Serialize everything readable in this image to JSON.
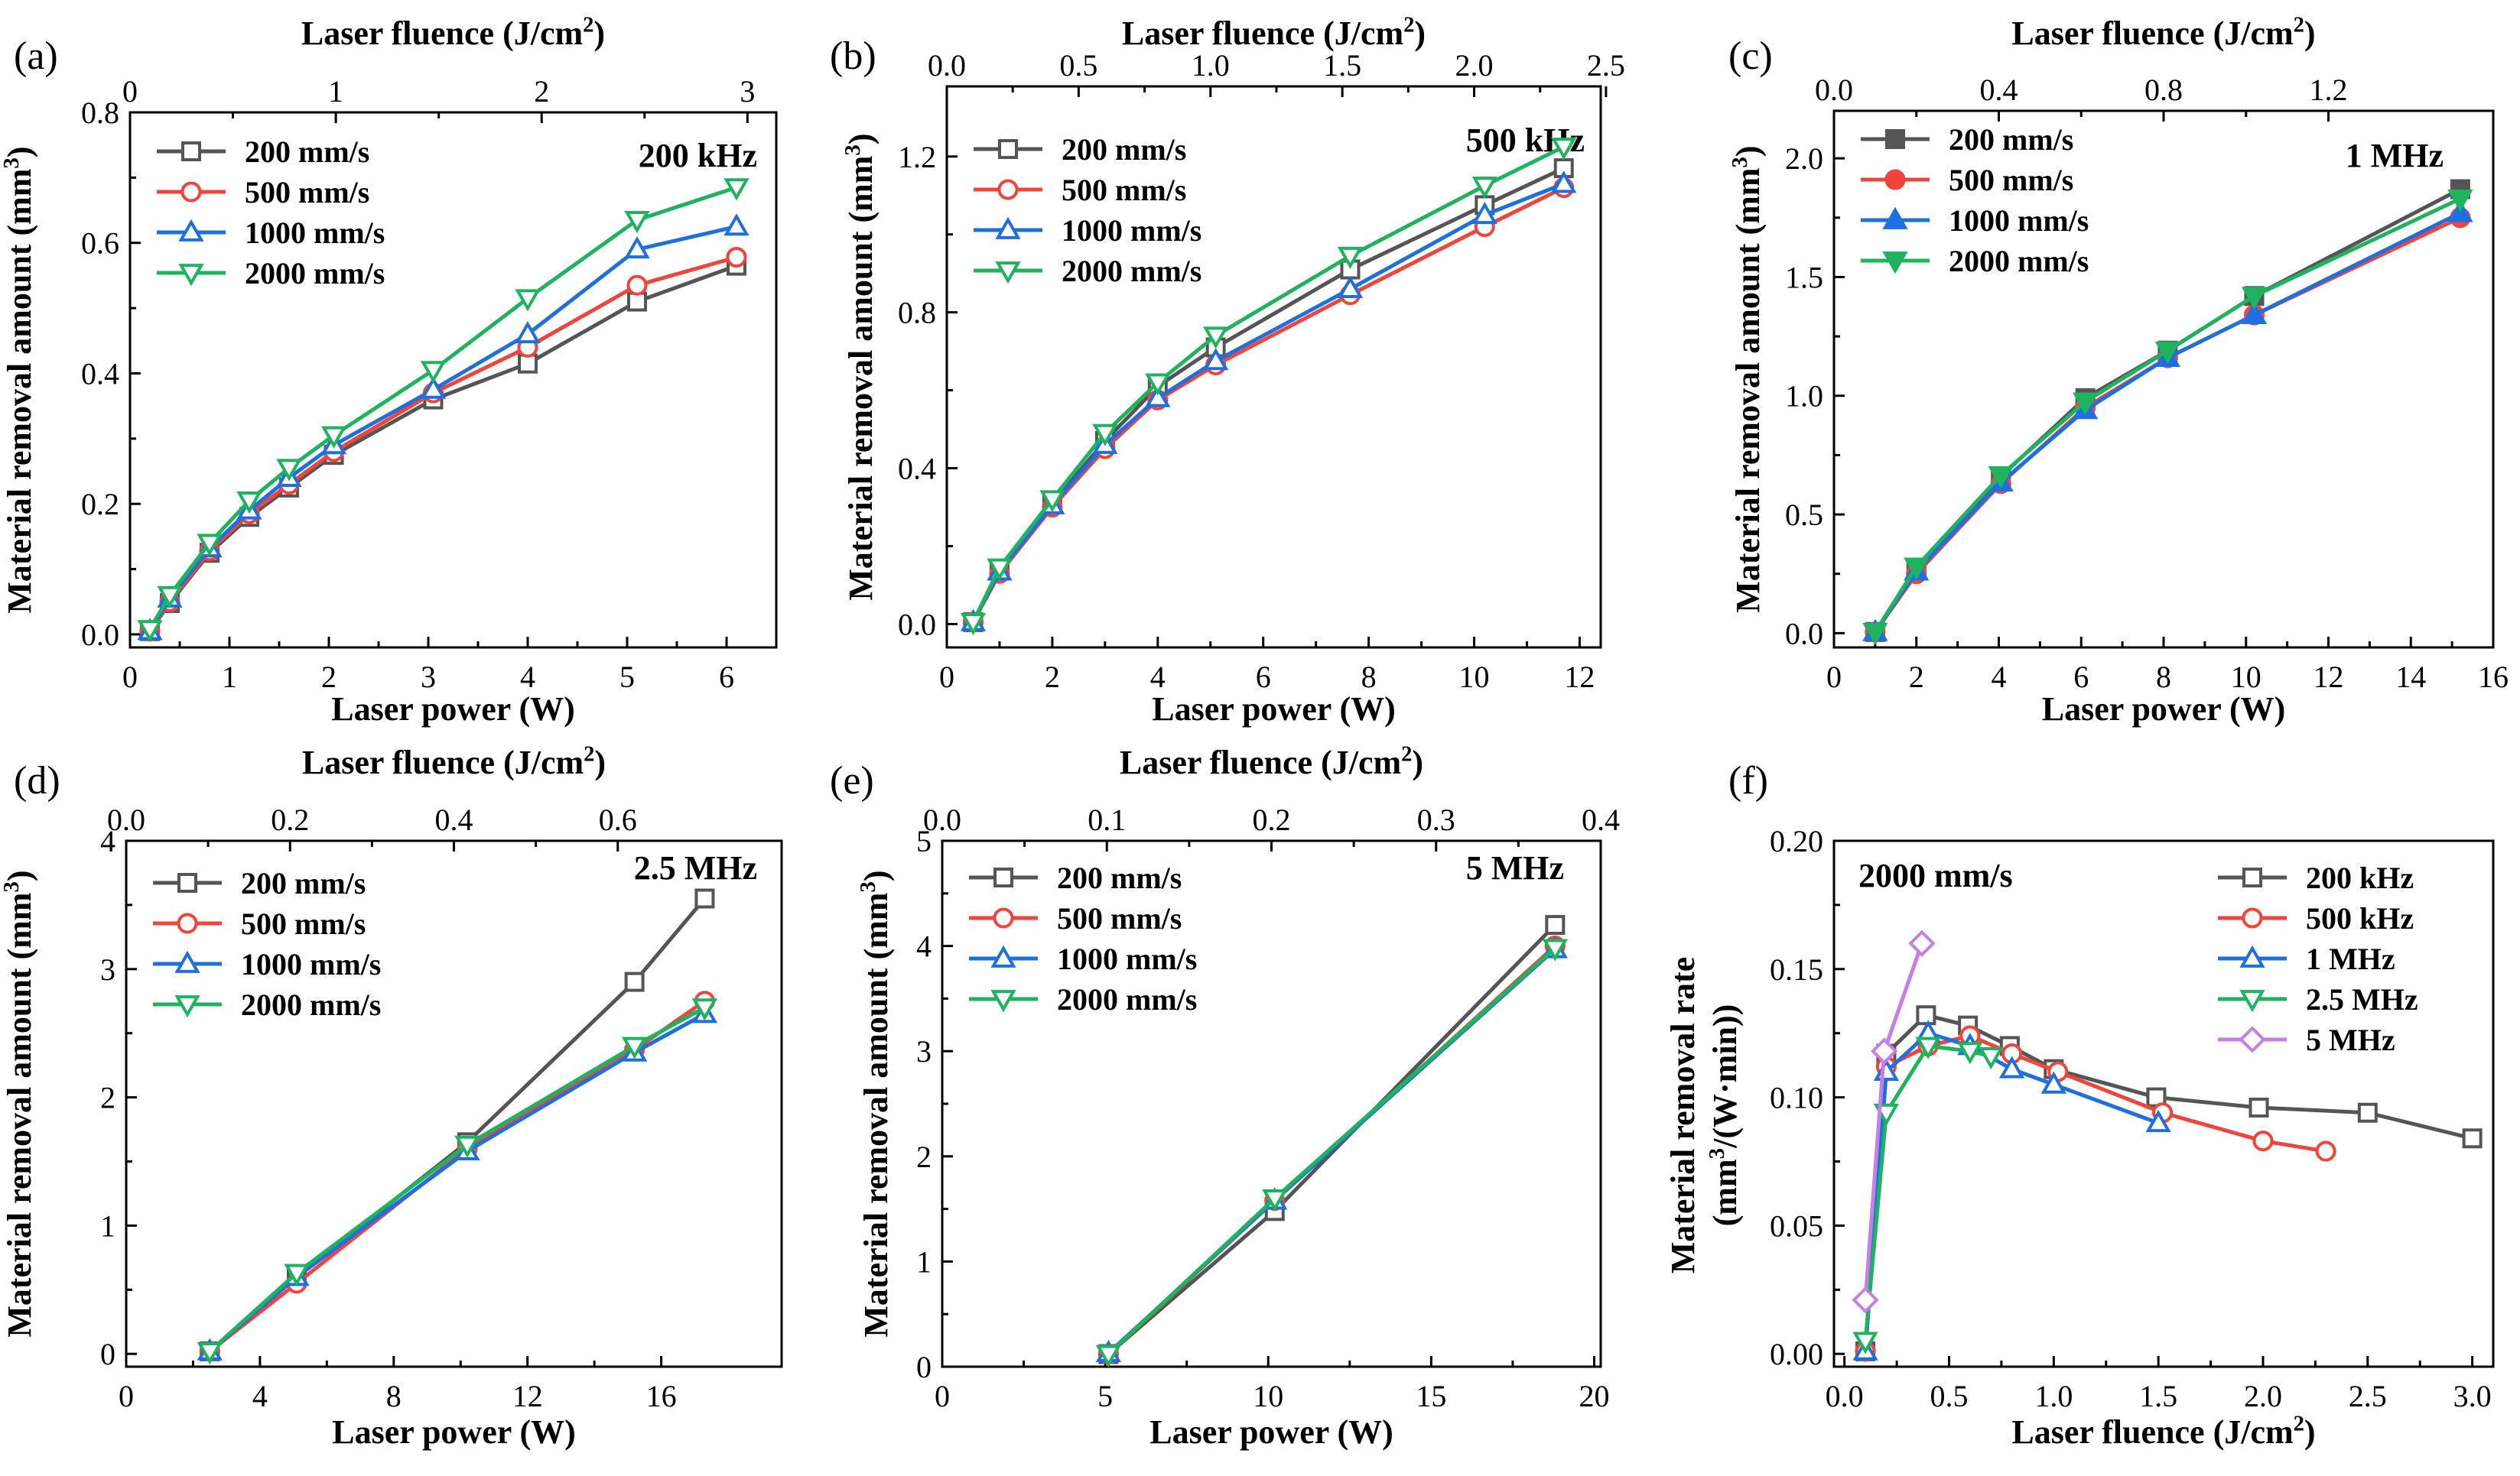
{
  "colors": {
    "200": "#555555",
    "500": "#f0443c",
    "1000": "#1e6fe0",
    "2000": "#1db35f",
    "f5MHz": "#c77ee6"
  },
  "chart_data": [
    {
      "id": "a",
      "panel_label": "(a)",
      "type": "line",
      "inset": "200 kHz",
      "xlabel": "Laser power (W)",
      "ylabel": "Material removal amount",
      "ylabel_unit": "(mm",
      "x2label": "Laser fluence (J/cm",
      "unit_exp": "2",
      "ylabel_exp": "3",
      "ylabel_close": ")",
      "xlim": [
        0,
        6.5
      ],
      "ylim": [
        -0.02,
        0.8
      ],
      "x2lim": [
        0,
        3.14
      ],
      "xticks": [
        0,
        1,
        2,
        3,
        4,
        5,
        6
      ],
      "yticks": [
        0.0,
        0.2,
        0.4,
        0.6,
        0.8
      ],
      "x2ticks": [
        0,
        1,
        2,
        3
      ],
      "xtick_labels": [
        "0",
        "1",
        "2",
        "3",
        "4",
        "5",
        "6"
      ],
      "ytick_labels": [
        "0.0",
        "0.2",
        "0.4",
        "0.6",
        "0.8"
      ],
      "x2tick_labels": [
        "0",
        "1",
        "2",
        "3"
      ],
      "ymin_ticks": true,
      "marker": "open",
      "legend_pos": "top-left",
      "series": [
        {
          "name": "200 mm/s",
          "color_key": "200",
          "shape": "square",
          "x": [
            0.2,
            0.4,
            0.8,
            1.2,
            1.6,
            2.05,
            3.05,
            4.0,
            5.1,
            6.1
          ],
          "y": [
            0.005,
            0.048,
            0.125,
            0.18,
            0.225,
            0.275,
            0.36,
            0.415,
            0.51,
            0.565
          ]
        },
        {
          "name": "500 mm/s",
          "color_key": "500",
          "shape": "circle",
          "x": [
            0.2,
            0.4,
            0.8,
            1.2,
            1.6,
            2.05,
            3.05,
            4.0,
            5.1,
            6.1
          ],
          "y": [
            0.005,
            0.05,
            0.128,
            0.185,
            0.23,
            0.28,
            0.37,
            0.44,
            0.535,
            0.578
          ]
        },
        {
          "name": "1000 mm/s",
          "color_key": "1000",
          "shape": "triangle",
          "x": [
            0.2,
            0.4,
            0.8,
            1.2,
            1.6,
            2.05,
            3.05,
            4.0,
            5.1,
            6.1
          ],
          "y": [
            0.005,
            0.055,
            0.132,
            0.19,
            0.24,
            0.29,
            0.375,
            0.46,
            0.59,
            0.625
          ]
        },
        {
          "name": "2000 mm/s",
          "color_key": "2000",
          "shape": "invtriangle",
          "x": [
            0.2,
            0.4,
            0.8,
            1.2,
            1.6,
            2.05,
            3.05,
            4.0,
            5.1,
            6.1
          ],
          "y": [
            0.008,
            0.06,
            0.14,
            0.205,
            0.255,
            0.305,
            0.405,
            0.515,
            0.635,
            0.685
          ]
        }
      ]
    },
    {
      "id": "b",
      "panel_label": "(b)",
      "type": "line",
      "inset": "500 kHz",
      "xlabel": "Laser power (W)",
      "ylabel": "Material removal amount",
      "ylabel_unit": "(mm",
      "x2label": "Laser fluence (J/cm",
      "unit_exp": "2",
      "ylabel_exp": "3",
      "ylabel_close": ")",
      "xlim": [
        0,
        12.4
      ],
      "ylim": [
        -0.06,
        1.38
      ],
      "x2lim": [
        0,
        2.48
      ],
      "xticks": [
        0,
        2,
        4,
        6,
        8,
        10,
        12
      ],
      "yticks": [
        0.0,
        0.4,
        0.8,
        1.2
      ],
      "x2ticks": [
        0.0,
        0.5,
        1.0,
        1.5,
        2.0,
        2.5
      ],
      "xtick_labels": [
        "0",
        "2",
        "4",
        "6",
        "8",
        "10",
        "12"
      ],
      "ytick_labels": [
        "0.0",
        "0.4",
        "0.8",
        "1.2"
      ],
      "x2tick_labels": [
        "0.0",
        "0.5",
        "1.0",
        "1.5",
        "2.0",
        "2.5"
      ],
      "ymin_ticks": true,
      "marker": "open",
      "legend_pos": "top-left",
      "series": [
        {
          "name": "200 mm/s",
          "color_key": "200",
          "shape": "square",
          "x": [
            0.5,
            1.0,
            2.0,
            3.0,
            4.0,
            5.1,
            7.65,
            10.2,
            11.7
          ],
          "y": [
            0.005,
            0.14,
            0.31,
            0.47,
            0.61,
            0.71,
            0.91,
            1.075,
            1.17
          ]
        },
        {
          "name": "500 mm/s",
          "color_key": "500",
          "shape": "circle",
          "x": [
            0.5,
            1.0,
            2.0,
            3.0,
            4.0,
            5.1,
            7.65,
            10.2,
            11.7
          ],
          "y": [
            0.005,
            0.13,
            0.3,
            0.45,
            0.575,
            0.665,
            0.845,
            1.02,
            1.12
          ]
        },
        {
          "name": "1000 mm/s",
          "color_key": "1000",
          "shape": "triangle",
          "x": [
            0.5,
            1.0,
            2.0,
            3.0,
            4.0,
            5.1,
            7.65,
            10.2,
            11.7
          ],
          "y": [
            0.005,
            0.135,
            0.305,
            0.46,
            0.58,
            0.675,
            0.86,
            1.05,
            1.13
          ]
        },
        {
          "name": "2000 mm/s",
          "color_key": "2000",
          "shape": "invtriangle",
          "x": [
            0.5,
            1.0,
            2.0,
            3.0,
            4.0,
            5.1,
            7.65,
            10.2,
            11.7
          ],
          "y": [
            0.005,
            0.145,
            0.32,
            0.49,
            0.62,
            0.74,
            0.945,
            1.125,
            1.225
          ]
        }
      ]
    },
    {
      "id": "c",
      "panel_label": "(c)",
      "type": "line",
      "inset": "1 MHz",
      "xlabel": "Laser power (W)",
      "ylabel": "Material removal amount",
      "ylabel_unit": "(mm",
      "x2label": "Laser fluence (J/cm",
      "unit_exp": "2",
      "ylabel_exp": "3",
      "ylabel_close": ")",
      "xlim": [
        0,
        16
      ],
      "ylim": [
        -0.06,
        2.2
      ],
      "x2lim": [
        0,
        1.6
      ],
      "xticks": [
        0,
        2,
        4,
        6,
        8,
        10,
        12,
        14,
        16
      ],
      "yticks": [
        0.0,
        0.5,
        1.0,
        1.5,
        2.0
      ],
      "x2ticks": [
        0.0,
        0.4,
        0.8,
        1.2
      ],
      "xtick_labels": [
        "0",
        "2",
        "4",
        "6",
        "8",
        "10",
        "12",
        "14",
        "16"
      ],
      "ytick_labels": [
        "0.0",
        "0.5",
        "1.0",
        "1.5",
        "2.0"
      ],
      "x2tick_labels": [
        "0.0",
        "0.4",
        "0.8",
        "1.2"
      ],
      "ymin_ticks": true,
      "marker": "filled",
      "legend_pos": "top-left",
      "series": [
        {
          "name": "200 mm/s",
          "color_key": "200",
          "shape": "square",
          "x": [
            1.0,
            2.0,
            4.05,
            6.1,
            8.1,
            10.2,
            15.2
          ],
          "y": [
            0.005,
            0.27,
            0.66,
            0.99,
            1.19,
            1.42,
            1.87
          ]
        },
        {
          "name": "500 mm/s",
          "color_key": "500",
          "shape": "circle",
          "x": [
            1.0,
            2.0,
            4.05,
            6.1,
            8.1,
            10.2,
            15.2
          ],
          "y": [
            0.005,
            0.25,
            0.63,
            0.95,
            1.16,
            1.34,
            1.75
          ]
        },
        {
          "name": "1000 mm/s",
          "color_key": "1000",
          "shape": "triangle",
          "x": [
            1.0,
            2.0,
            4.05,
            6.1,
            8.1,
            10.2,
            15.2
          ],
          "y": [
            0.005,
            0.26,
            0.635,
            0.94,
            1.16,
            1.34,
            1.77
          ]
        },
        {
          "name": "2000 mm/s",
          "color_key": "2000",
          "shape": "invtriangle",
          "x": [
            1.0,
            2.0,
            4.05,
            6.1,
            8.1,
            10.2,
            15.2
          ],
          "y": [
            0.005,
            0.28,
            0.665,
            0.975,
            1.19,
            1.42,
            1.83
          ]
        }
      ]
    },
    {
      "id": "d",
      "panel_label": "(d)",
      "type": "line",
      "inset": "2.5 MHz",
      "xlabel": "Laser power (W)",
      "ylabel": "Material removal amount",
      "ylabel_unit": "(mm",
      "x2label": "Laser fluence (J/cm",
      "unit_exp": "2",
      "ylabel_exp": "3",
      "ylabel_close": ")",
      "xlim": [
        0,
        19.6
      ],
      "ylim": [
        -0.1,
        4.0
      ],
      "x2lim": [
        0,
        0.8
      ],
      "xticks": [
        0,
        4,
        8,
        12,
        16
      ],
      "yticks": [
        0,
        1,
        2,
        3,
        4
      ],
      "x2ticks": [
        0.0,
        0.2,
        0.4,
        0.6
      ],
      "xtick_labels": [
        "0",
        "4",
        "8",
        "12",
        "16"
      ],
      "ytick_labels": [
        "0",
        "1",
        "2",
        "3",
        "4"
      ],
      "x2tick_labels": [
        "0.0",
        "0.2",
        "0.4",
        "0.6"
      ],
      "ymin_ticks": true,
      "marker": "open",
      "legend_pos": "top-left",
      "series": [
        {
          "name": "200 mm/s",
          "color_key": "200",
          "shape": "square",
          "x": [
            2.5,
            5.1,
            10.2,
            15.2,
            17.3
          ],
          "y": [
            0.02,
            0.6,
            1.65,
            2.9,
            3.55
          ]
        },
        {
          "name": "500 mm/s",
          "color_key": "500",
          "shape": "circle",
          "x": [
            2.5,
            5.1,
            10.2,
            15.2,
            17.3
          ],
          "y": [
            0.02,
            0.55,
            1.6,
            2.37,
            2.75
          ]
        },
        {
          "name": "1000 mm/s",
          "color_key": "1000",
          "shape": "triangle",
          "x": [
            2.5,
            5.1,
            10.2,
            15.2,
            17.3
          ],
          "y": [
            0.02,
            0.6,
            1.58,
            2.35,
            2.65
          ]
        },
        {
          "name": "2000 mm/s",
          "color_key": "2000",
          "shape": "invtriangle",
          "x": [
            2.5,
            5.1,
            10.2,
            15.2,
            17.3
          ],
          "y": [
            0.02,
            0.63,
            1.63,
            2.4,
            2.7
          ]
        }
      ]
    },
    {
      "id": "e",
      "panel_label": "(e)",
      "type": "line",
      "inset": "5 MHz",
      "xlabel": "Laser power (W)",
      "ylabel": "Material removal amount",
      "ylabel_unit": "(mm",
      "x2label": "Laser fluence (J/cm",
      "unit_exp": "2",
      "ylabel_exp": "3",
      "ylabel_close": ")",
      "xlim": [
        0,
        20.2
      ],
      "ylim": [
        0,
        5
      ],
      "x2lim": [
        0,
        0.4
      ],
      "xticks": [
        0,
        5,
        10,
        15,
        20
      ],
      "yticks": [
        0,
        1,
        2,
        3,
        4,
        5
      ],
      "x2ticks": [
        0.0,
        0.1,
        0.2,
        0.3,
        0.4
      ],
      "xtick_labels": [
        "0",
        "5",
        "10",
        "15",
        "20"
      ],
      "ytick_labels": [
        "0",
        "1",
        "2",
        "3",
        "4",
        "5"
      ],
      "x2tick_labels": [
        "0.0",
        "0.1",
        "0.2",
        "0.3",
        "0.4"
      ],
      "ymin_ticks": true,
      "marker": "open",
      "legend_pos": "top-left",
      "series": [
        {
          "name": "200 mm/s",
          "color_key": "200",
          "shape": "square",
          "x": [
            5.1,
            10.2,
            18.8
          ],
          "y": [
            0.12,
            1.48,
            4.2
          ]
        },
        {
          "name": "500 mm/s",
          "color_key": "500",
          "shape": "circle",
          "x": [
            5.1,
            10.2,
            18.8
          ],
          "y": [
            0.12,
            1.58,
            4.0
          ]
        },
        {
          "name": "1000 mm/s",
          "color_key": "1000",
          "shape": "triangle",
          "x": [
            5.1,
            10.2,
            18.8
          ],
          "y": [
            0.13,
            1.58,
            3.97
          ]
        },
        {
          "name": "2000 mm/s",
          "color_key": "2000",
          "shape": "invtriangle",
          "x": [
            5.1,
            10.2,
            18.8
          ],
          "y": [
            0.12,
            1.6,
            3.98
          ]
        }
      ]
    },
    {
      "id": "f",
      "panel_label": "(f)",
      "type": "line",
      "inset": "2000 mm/s",
      "xlabel": "Laser fluence (J/cm",
      "unit_exp": "2",
      "xlabel_close": ")",
      "ylabel": "Material removal rate",
      "ylabel2_a": "(mm",
      "ylabel2_exp": "3",
      "ylabel2_b": "/(W·min))",
      "xlim": [
        -0.05,
        3.1
      ],
      "ylim": [
        -0.005,
        0.2
      ],
      "xticks": [
        0.0,
        0.5,
        1.0,
        1.5,
        2.0,
        2.5,
        3.0
      ],
      "yticks": [
        0.0,
        0.05,
        0.1,
        0.15,
        0.2
      ],
      "xtick_labels": [
        "0.0",
        "0.5",
        "1.0",
        "1.5",
        "2.0",
        "2.5",
        "3.0"
      ],
      "ytick_labels": [
        "0.00",
        "0.05",
        "0.10",
        "0.15",
        "0.20"
      ],
      "ymin_ticks": true,
      "marker": "open",
      "legend_pos": "top-right",
      "series": [
        {
          "name": "200 kHz",
          "color_key": "200",
          "shape": "square",
          "x": [
            0.1,
            0.2,
            0.39,
            0.59,
            0.79,
            1.0,
            1.49,
            1.98,
            2.5,
            3.0
          ],
          "y": [
            0.001,
            0.117,
            0.132,
            0.128,
            0.12,
            0.111,
            0.1,
            0.096,
            0.094,
            0.084
          ]
        },
        {
          "name": "500 kHz",
          "color_key": "500",
          "shape": "circle",
          "x": [
            0.1,
            0.2,
            0.4,
            0.6,
            0.8,
            1.02,
            1.52,
            2.0,
            2.3
          ],
          "y": [
            0.001,
            0.112,
            0.12,
            0.124,
            0.117,
            0.11,
            0.094,
            0.083,
            0.079
          ]
        },
        {
          "name": "1 MHz",
          "color_key": "1000",
          "shape": "triangle",
          "x": [
            0.1,
            0.2,
            0.4,
            0.6,
            0.8,
            1.0,
            1.5
          ],
          "y": [
            0.001,
            0.11,
            0.125,
            0.12,
            0.111,
            0.105,
            0.09
          ]
        },
        {
          "name": "2.5 MHz",
          "color_key": "2000",
          "shape": "invtriangle",
          "x": [
            0.1,
            0.2,
            0.4,
            0.6,
            0.7
          ],
          "y": [
            0.005,
            0.094,
            0.12,
            0.118,
            0.116
          ]
        },
        {
          "name": "5 MHz",
          "color_key": "f5MHz",
          "shape": "diamond",
          "x": [
            0.1,
            0.19,
            0.37
          ],
          "y": [
            0.021,
            0.118,
            0.16
          ]
        }
      ]
    }
  ]
}
